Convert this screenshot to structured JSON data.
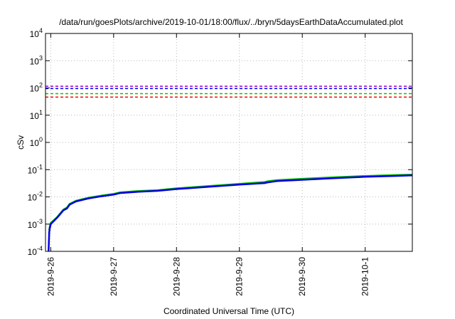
{
  "chart_data": {
    "type": "line",
    "title": "/data/run/goesPlots/archive/2019-10-01/18:00/flux/../bryn/5daysEarthDataAccumulated.plot",
    "xlabel": "Coordinated Universal Time (UTC)",
    "ylabel": "cSv",
    "yscale": "log",
    "xlim": [
      "2019-09-25 22:00",
      "2019-10-01 18:00"
    ],
    "ylim": [
      0.0001,
      10000
    ],
    "grid": true,
    "x_ticks": [
      "2019-9-26",
      "2019-9-27",
      "2019-9-28",
      "2019-9-29",
      "2019-9-30",
      "2019-10-1"
    ],
    "y_ticks": [
      {
        "value": 0.0001,
        "base": "10",
        "exp": "-4"
      },
      {
        "value": 0.001,
        "base": "10",
        "exp": "-3"
      },
      {
        "value": 0.01,
        "base": "10",
        "exp": "-2"
      },
      {
        "value": 0.1,
        "base": "10",
        "exp": "-1"
      },
      {
        "value": 1,
        "base": "10",
        "exp": "0"
      },
      {
        "value": 10,
        "base": "10",
        "exp": "1"
      },
      {
        "value": 100,
        "base": "10",
        "exp": "2"
      },
      {
        "value": 1000,
        "base": "10",
        "exp": "3"
      },
      {
        "value": 10000,
        "base": "10",
        "exp": "4"
      }
    ],
    "thresholds": [
      {
        "value": 115,
        "color": "#9400d3"
      },
      {
        "value": 95,
        "color": "#0000ff"
      },
      {
        "value": 62,
        "color": "#00c800"
      },
      {
        "value": 46,
        "color": "#ff0000"
      }
    ],
    "series": [
      {
        "color": "#00c000",
        "x": [
          "2019-09-25 23:24",
          "2019-09-25 23:38",
          "2019-09-26 00:00",
          "2019-09-26 02:24",
          "2019-09-26 04:48",
          "2019-09-26 06:14",
          "2019-09-26 07:12",
          "2019-09-26 09:36",
          "2019-09-26 14:24",
          "2019-09-26 19:12",
          "2019-09-27 00:00",
          "2019-09-27 02:24",
          "2019-09-27 09:36",
          "2019-09-27 16:48",
          "2019-09-28 00:00",
          "2019-09-28 12:00",
          "2019-09-29 00:00",
          "2019-09-29 09:36",
          "2019-09-29 10:48",
          "2019-09-29 14:24",
          "2019-09-30 00:00",
          "2019-09-30 12:00",
          "2019-10-01 00:00",
          "2019-10-01 12:00",
          "2019-10-01 18:00"
        ],
        "y": [
          0.0006,
          0.0008,
          0.0011,
          0.0018,
          0.0034,
          0.0041,
          0.0055,
          0.0072,
          0.0093,
          0.0111,
          0.0128,
          0.0146,
          0.0164,
          0.0176,
          0.0206,
          0.0248,
          0.03,
          0.0352,
          0.0374,
          0.0412,
          0.0461,
          0.0525,
          0.0585,
          0.0634,
          0.066
        ]
      },
      {
        "color": "#0000e0",
        "x": [
          "2019-09-25 23:10",
          "2019-09-25 23:17",
          "2019-09-25 23:24",
          "2019-09-25 23:38",
          "2019-09-26 00:00",
          "2019-09-26 02:24",
          "2019-09-26 04:48",
          "2019-09-26 06:14",
          "2019-09-26 07:12",
          "2019-09-26 09:36",
          "2019-09-26 14:24",
          "2019-09-26 19:12",
          "2019-09-27 00:00",
          "2019-09-27 02:24",
          "2019-09-27 09:36",
          "2019-09-27 16:48",
          "2019-09-28 00:00",
          "2019-09-28 12:00",
          "2019-09-29 00:00",
          "2019-09-29 09:36",
          "2019-09-29 10:48",
          "2019-09-29 14:24",
          "2019-09-30 00:00",
          "2019-09-30 12:00",
          "2019-10-01 00:00",
          "2019-10-01 12:00",
          "2019-10-01 18:00"
        ],
        "y": [
          0.0001,
          0.0002,
          0.0005,
          0.0007,
          0.001,
          0.0017,
          0.0032,
          0.0038,
          0.0052,
          0.0068,
          0.0088,
          0.0105,
          0.0121,
          0.0138,
          0.0155,
          0.0167,
          0.0194,
          0.0234,
          0.0282,
          0.0322,
          0.0342,
          0.038,
          0.0425,
          0.0487,
          0.0545,
          0.0592,
          0.0617
        ]
      }
    ]
  }
}
